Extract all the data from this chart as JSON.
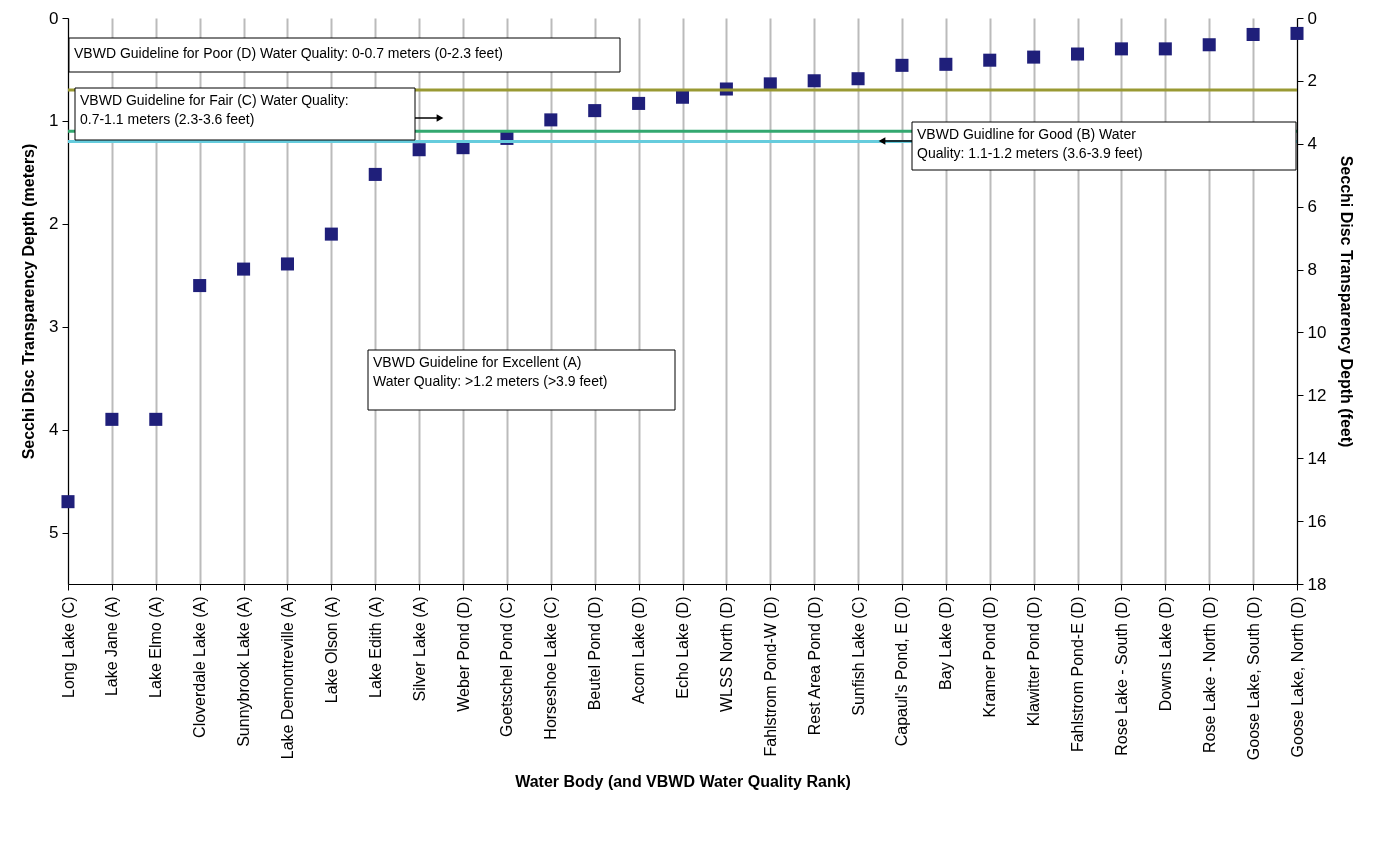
{
  "chart_data": {
    "type": "scatter",
    "xlabel": "Water Body (and VBWD Water Quality Rank)",
    "ylabel": "Secchi Disc Transparency Depth (meters)",
    "y2label": "Secchi Disc Transparency Depth (feet)",
    "categories": [
      "Long Lake (C)",
      "Lake Jane (A)",
      "Lake Elmo (A)",
      "Cloverdale Lake (A)",
      "Sunnybrook Lake (A)",
      "Lake Demontreville (A)",
      "Lake Olson (A)",
      "Lake Edith (A)",
      "Silver Lake (A)",
      "Weber Pond (D)",
      "Goetschel Pond (C)",
      "Horseshoe Lake (C)",
      "Beutel Pond (D)",
      "Acorn Lake (D)",
      "Echo Lake (D)",
      "WLSS North (D)",
      "Fahlstrom Pond-W (D)",
      "Rest Area Pond (D)",
      "Sunfish Lake (C)",
      "Capaul's Pond, E (D)",
      "Bay Lake (D)",
      "Kramer Pond (D)",
      "Klawitter Pond (D)",
      "Fahlstrom Pond-E (D)",
      "Rose Lake - South (D)",
      "Downs Lake (D)",
      "Rose Lake - North (D)",
      "Goose Lake, South (D)",
      "Goose Lake, North (D)"
    ],
    "series": [
      {
        "color": "#1f1f7a",
        "values": [
          4.7,
          3.9,
          3.9,
          2.6,
          2.44,
          2.39,
          2.1,
          1.52,
          1.28,
          1.26,
          1.17,
          0.99,
          0.9,
          0.83,
          0.77,
          0.69,
          0.64,
          0.61,
          0.59,
          0.46,
          0.45,
          0.41,
          0.38,
          0.35,
          0.3,
          0.3,
          0.26,
          0.16,
          0.15
        ]
      }
    ],
    "marker": "square",
    "ylim": [
      5.5,
      0
    ],
    "yticks": [
      0,
      1,
      2,
      3,
      4,
      5
    ],
    "y2lim": [
      18,
      0
    ],
    "y2ticks": [
      0,
      2,
      4,
      6,
      8,
      10,
      12,
      14,
      16,
      18
    ],
    "grid": "x",
    "ref_lines": [
      {
        "axis": "y",
        "value": 0.7,
        "color": "#999933"
      },
      {
        "axis": "y",
        "value": 1.1,
        "color": "#33a870"
      },
      {
        "axis": "y",
        "value": 1.2,
        "color": "#66ccdd"
      }
    ],
    "annotations": [
      "VBWD Guideline for Poor (D) Water Quality: 0-0.7 meters (0-2.3 feet)",
      "VBWD Guideline for Fair  (C) Water Quality: 0.7-1.1 meters (2.3-3.6 feet)",
      "VBWD Guidline for Good (B) Water Quality:  1.1-1.2 meters (3.6-3.9 feet)",
      "VBWD Guideline for Excellent (A) Water Quality:  >1.2 meters (>3.9 feet)"
    ]
  }
}
